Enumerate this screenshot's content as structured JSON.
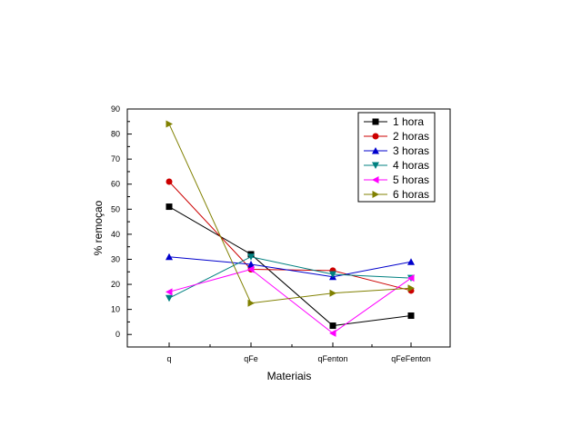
{
  "chart_data": {
    "type": "line",
    "title": "",
    "xlabel": "Materiais",
    "ylabel": "% remoçao",
    "categories": [
      "q",
      "qFe",
      "qFenton",
      "qFeFenton"
    ],
    "ylim": [
      -5,
      90
    ],
    "yticks": [
      0,
      10,
      20,
      30,
      40,
      50,
      60,
      70,
      80,
      90
    ],
    "grid": false,
    "legend_position": "top-right",
    "series": [
      {
        "name": "1 hora",
        "color": "#000000",
        "marker": "square",
        "values": [
          51,
          32,
          3.5,
          7.5
        ]
      },
      {
        "name": "2 horas",
        "color": "#cc0000",
        "marker": "circle",
        "values": [
          61,
          26,
          25.5,
          17.5
        ]
      },
      {
        "name": "3 horas",
        "color": "#0000cc",
        "marker": "triangle-up",
        "values": [
          31,
          28,
          23,
          29
        ]
      },
      {
        "name": "4 horas",
        "color": "#008080",
        "marker": "triangle-down",
        "values": [
          14.5,
          31,
          24,
          22.5
        ]
      },
      {
        "name": "5 horas",
        "color": "#ff00ff",
        "marker": "triangle-left",
        "values": [
          17,
          26,
          0.5,
          22.5
        ]
      },
      {
        "name": "6 horas",
        "color": "#808000",
        "marker": "triangle-right",
        "values": [
          84,
          12.5,
          16.5,
          18.5
        ]
      }
    ]
  }
}
